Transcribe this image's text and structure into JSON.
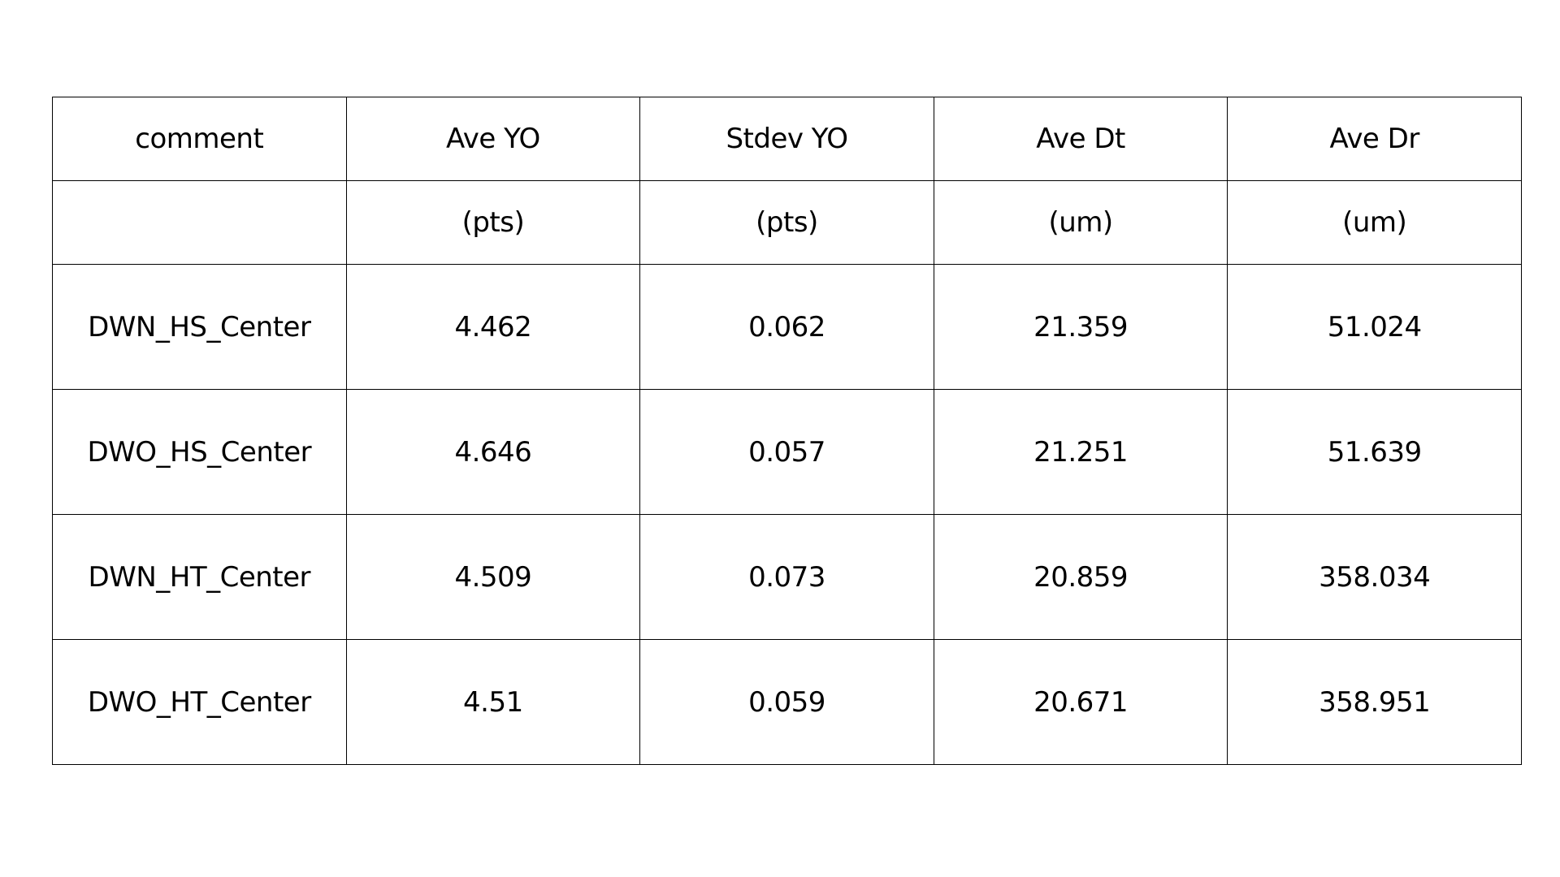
{
  "table": {
    "header": [
      "comment",
      "Ave YO",
      "Stdev YO",
      "Ave Dt",
      "Ave Dr"
    ],
    "units": [
      "(pts)",
      "(pts)",
      "(um)",
      "(um)"
    ],
    "rows": [
      [
        "DWN_HS_Center",
        "4.462",
        "0.062",
        "21.359",
        "51.024"
      ],
      [
        "DWO_HS_Center",
        "4.646",
        "0.057",
        "21.251",
        "51.639"
      ],
      [
        "DWN_HT_Center",
        "4.509",
        "0.073",
        "20.859",
        "358.034"
      ],
      [
        "DWO_HT_Center",
        "4.51",
        "0.059",
        "20.671",
        "358.951"
      ]
    ]
  }
}
